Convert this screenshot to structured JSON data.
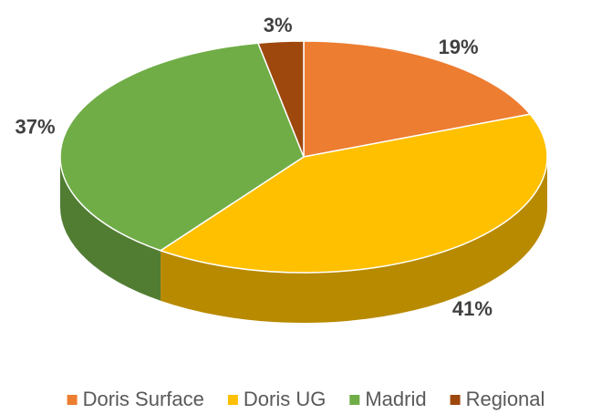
{
  "chart_data": {
    "type": "pie3d",
    "categories": [
      "Doris Surface",
      "Doris UG",
      "Madrid",
      "Regional"
    ],
    "values": [
      19,
      41,
      37,
      3
    ],
    "value_labels": [
      "19%",
      "41%",
      "37%",
      "3%"
    ],
    "colors": [
      "#ED7D31",
      "#FFC000",
      "#70AD47",
      "#9E480E"
    ],
    "legend": "bottom"
  }
}
